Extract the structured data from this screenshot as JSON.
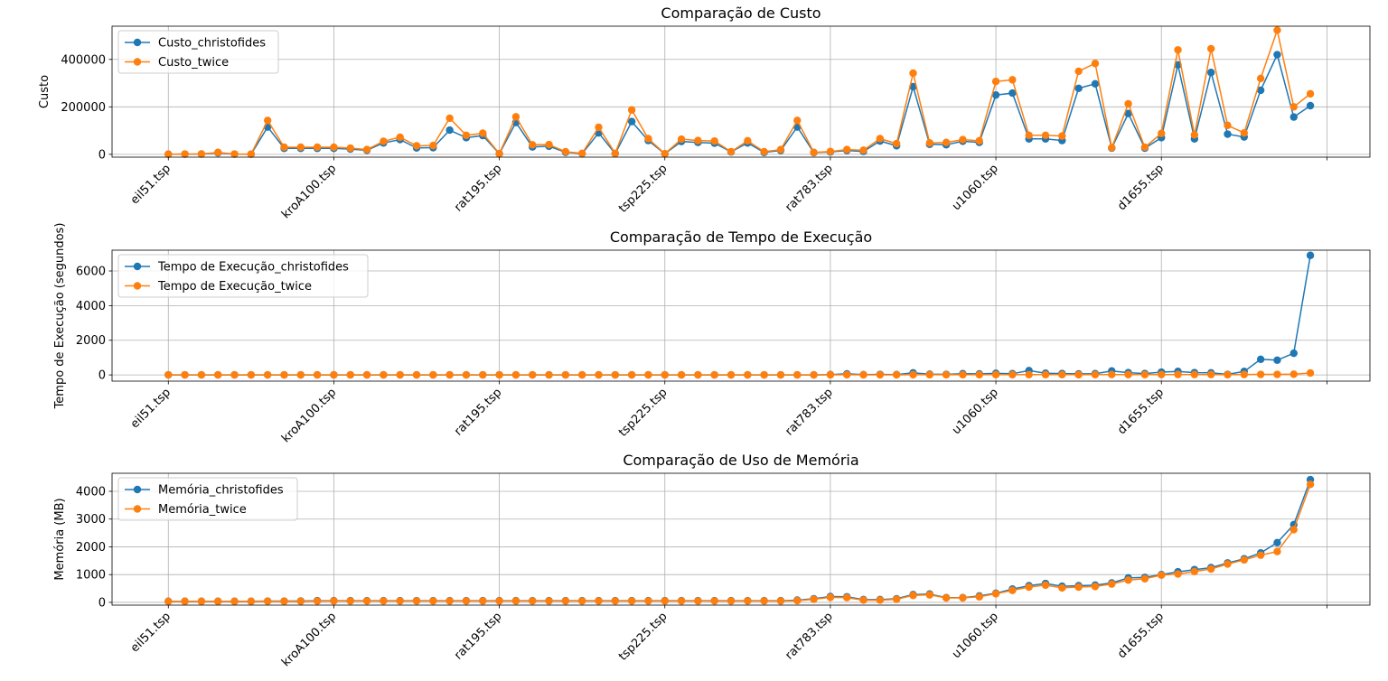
{
  "chart_data": [
    {
      "type": "line",
      "title": "Comparação de Custo",
      "xlabel": "",
      "ylabel": "Custo",
      "ylim": [
        -12000,
        540000
      ],
      "yticks": [
        0,
        200000,
        400000
      ],
      "ytick_labels": [
        "0",
        "200000",
        "400000"
      ],
      "xtick_labels": [
        "eil51.tsp",
        "kroA100.tsp",
        "rat195.tsp",
        "tsp225.tsp",
        "rat783.tsp",
        "u1060.tsp",
        "d1655.tsp",
        ""
      ],
      "xtick_positions": [
        0,
        10,
        20,
        30,
        40,
        50,
        60,
        70
      ],
      "xlim": [
        -3.4,
        72.6
      ],
      "grid": true,
      "legend_loc": "upper left",
      "series": [
        {
          "name": "Custo_christofides",
          "color": "#1f77b4",
          "values": [
            500,
            800,
            1200,
            6000,
            800,
            600,
            115000,
            25000,
            25000,
            25000,
            25000,
            22000,
            17000,
            48000,
            62000,
            27000,
            28000,
            102000,
            70000,
            79000,
            2500,
            134000,
            31000,
            34000,
            8500,
            3000,
            90000,
            3000,
            138000,
            58000,
            2000,
            54000,
            50000,
            47000,
            10000,
            48000,
            8000,
            16000,
            115000,
            7000,
            10000,
            16000,
            12000,
            56000,
            36000,
            285000,
            42000,
            40000,
            55000,
            50000,
            250000,
            258000,
            65000,
            65000,
            58000,
            278000,
            297000,
            26000,
            172000,
            26000,
            70000,
            377000,
            65000,
            345000,
            85000,
            73000,
            270000,
            420000,
            157000,
            205000
          ]
        },
        {
          "name": "Custo_twice",
          "color": "#ff7f0e",
          "values": [
            600,
            1000,
            1500,
            8000,
            1000,
            800,
            143000,
            30000,
            30000,
            30000,
            30000,
            26000,
            20000,
            55000,
            72000,
            36000,
            37000,
            152000,
            80000,
            89000,
            2800,
            158000,
            40000,
            41000,
            11000,
            4000,
            114000,
            4000,
            187000,
            66000,
            2300,
            64000,
            58000,
            56000,
            11000,
            57000,
            11000,
            20000,
            143000,
            8000,
            12000,
            20000,
            17000,
            66000,
            45000,
            342000,
            48000,
            50000,
            62000,
            57000,
            307000,
            314000,
            80000,
            80000,
            77000,
            350000,
            383000,
            28000,
            213000,
            30000,
            88000,
            440000,
            82000,
            445000,
            122000,
            90000,
            320000,
            523000,
            200000,
            255000
          ]
        }
      ]
    },
    {
      "type": "line",
      "title": "Comparação de Tempo de Execução",
      "xlabel": "",
      "ylabel": "Tempo de Execução (segundos)",
      "ylim": [
        -360,
        7200
      ],
      "yticks": [
        0,
        2000,
        4000,
        6000
      ],
      "ytick_labels": [
        "0",
        "2000",
        "4000",
        "6000"
      ],
      "xtick_labels": [
        "eil51.tsp",
        "kroA100.tsp",
        "rat195.tsp",
        "tsp225.tsp",
        "rat783.tsp",
        "u1060.tsp",
        "d1655.tsp",
        ""
      ],
      "xtick_positions": [
        0,
        10,
        20,
        30,
        40,
        50,
        60,
        70
      ],
      "xlim": [
        -3.4,
        72.6
      ],
      "grid": true,
      "legend_loc": "upper left",
      "series": [
        {
          "name": "Tempo de Execução_christofides",
          "color": "#1f77b4",
          "values": [
            1,
            1,
            1,
            1,
            1,
            1,
            1,
            1,
            1,
            1,
            1,
            1,
            1,
            1,
            1,
            1,
            1,
            1,
            1,
            1,
            1,
            1,
            1,
            1,
            1,
            1,
            1,
            1,
            1,
            1,
            1,
            1,
            1,
            1,
            1,
            1,
            1,
            1,
            1,
            1,
            20,
            60,
            15,
            30,
            20,
            120,
            40,
            30,
            70,
            60,
            90,
            70,
            250,
            100,
            80,
            60,
            70,
            230,
            130,
            80,
            160,
            200,
            130,
            120,
            30,
            200,
            900,
            850,
            1250,
            6900
          ]
        },
        {
          "name": "Tempo de Execução_twice",
          "color": "#ff7f0e",
          "values": [
            1,
            1,
            1,
            1,
            1,
            1,
            1,
            1,
            1,
            1,
            1,
            1,
            1,
            1,
            1,
            1,
            1,
            1,
            1,
            1,
            1,
            1,
            1,
            1,
            1,
            1,
            1,
            1,
            1,
            1,
            1,
            1,
            1,
            1,
            1,
            1,
            1,
            1,
            1,
            1,
            5,
            8,
            5,
            6,
            5,
            12,
            8,
            8,
            10,
            10,
            14,
            12,
            16,
            14,
            14,
            12,
            14,
            20,
            18,
            16,
            22,
            25,
            22,
            22,
            10,
            25,
            30,
            30,
            40,
            110
          ]
        }
      ]
    },
    {
      "type": "line",
      "title": "Comparação de Uso de Memória",
      "xlabel": "",
      "ylabel": "Memória (MB)",
      "ylim": [
        -100,
        4650
      ],
      "yticks": [
        0,
        1000,
        2000,
        3000,
        4000
      ],
      "ytick_labels": [
        "0",
        "1000",
        "2000",
        "3000",
        "4000"
      ],
      "xtick_labels": [
        "eil51.tsp",
        "kroA100.tsp",
        "rat195.tsp",
        "tsp225.tsp",
        "rat783.tsp",
        "u1060.tsp",
        "d1655.tsp",
        ""
      ],
      "xtick_positions": [
        0,
        10,
        20,
        30,
        40,
        50,
        60,
        70
      ],
      "xlim": [
        -3.4,
        72.6
      ],
      "grid": true,
      "legend_loc": "upper left",
      "series": [
        {
          "name": "Memória_christofides",
          "color": "#1f77b4",
          "values": [
            40,
            40,
            40,
            40,
            40,
            40,
            45,
            45,
            50,
            60,
            60,
            60,
            60,
            60,
            60,
            60,
            60,
            60,
            60,
            60,
            60,
            60,
            60,
            60,
            60,
            60,
            60,
            60,
            60,
            60,
            60,
            60,
            60,
            60,
            60,
            60,
            60,
            60,
            80,
            130,
            210,
            200,
            100,
            100,
            130,
            280,
            300,
            170,
            170,
            230,
            330,
            480,
            600,
            680,
            580,
            600,
            620,
            700,
            880,
            900,
            1000,
            1100,
            1180,
            1250,
            1420,
            1570,
            1780,
            2150,
            2800,
            4420
          ]
        },
        {
          "name": "Memória_twice",
          "color": "#ff7f0e",
          "values": [
            35,
            35,
            35,
            35,
            35,
            35,
            40,
            40,
            40,
            45,
            50,
            50,
            50,
            50,
            50,
            50,
            50,
            50,
            50,
            50,
            50,
            50,
            50,
            50,
            50,
            50,
            50,
            50,
            50,
            50,
            50,
            50,
            50,
            50,
            50,
            50,
            50,
            50,
            60,
            110,
            180,
            170,
            80,
            80,
            110,
            250,
            270,
            160,
            160,
            200,
            310,
            430,
            550,
            620,
            520,
            550,
            570,
            660,
            800,
            850,
            980,
            1020,
            1110,
            1200,
            1380,
            1530,
            1700,
            1830,
            2620,
            4250
          ]
        }
      ]
    }
  ]
}
